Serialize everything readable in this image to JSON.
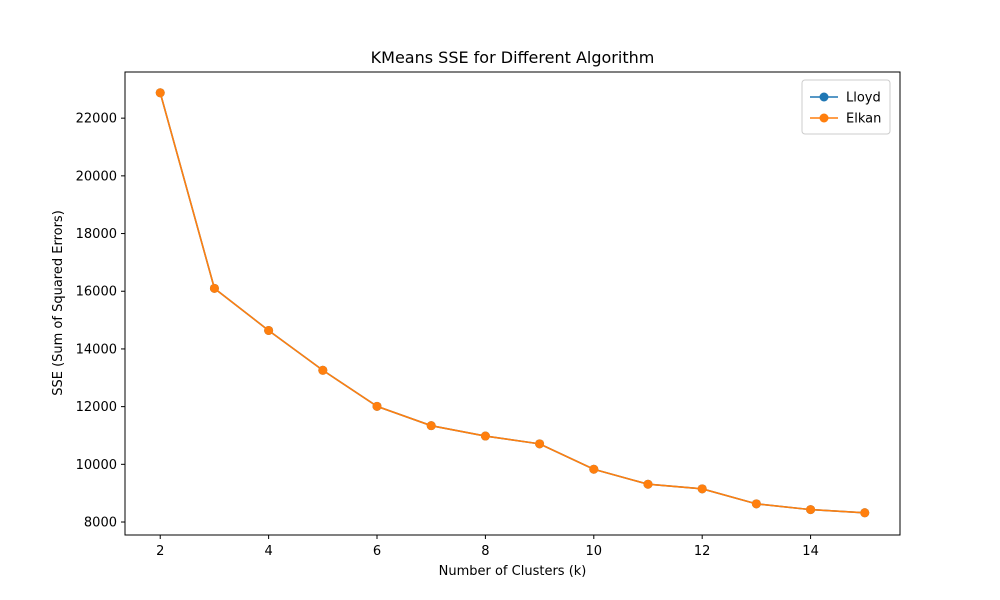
{
  "chart_data": {
    "type": "line",
    "title": "KMeans SSE for Different Algorithm",
    "xlabel": "Number of Clusters (k)",
    "ylabel": "SSE (Sum of Squared Errors)",
    "xlim": [
      1.35,
      15.65
    ],
    "ylim": [
      7550,
      23600
    ],
    "xticks": [
      2,
      4,
      6,
      8,
      10,
      12,
      14
    ],
    "yticks": [
      8000,
      10000,
      12000,
      14000,
      16000,
      18000,
      20000,
      22000
    ],
    "grid": false,
    "legend_position": "top-right",
    "x": [
      2,
      3,
      4,
      5,
      6,
      7,
      8,
      9,
      10,
      11,
      12,
      13,
      14,
      15
    ],
    "series": [
      {
        "name": "Lloyd",
        "color": "#1f77b4",
        "marker": "circle",
        "values": [
          22880,
          16100,
          14640,
          13260,
          12010,
          11340,
          10980,
          10710,
          9830,
          9310,
          9150,
          8630,
          8430,
          8320
        ]
      },
      {
        "name": "Elkan",
        "color": "#ff7f0e",
        "marker": "circle",
        "values": [
          22880,
          16100,
          14640,
          13260,
          12010,
          11340,
          10980,
          10710,
          9830,
          9310,
          9150,
          8630,
          8430,
          8320
        ]
      }
    ]
  }
}
